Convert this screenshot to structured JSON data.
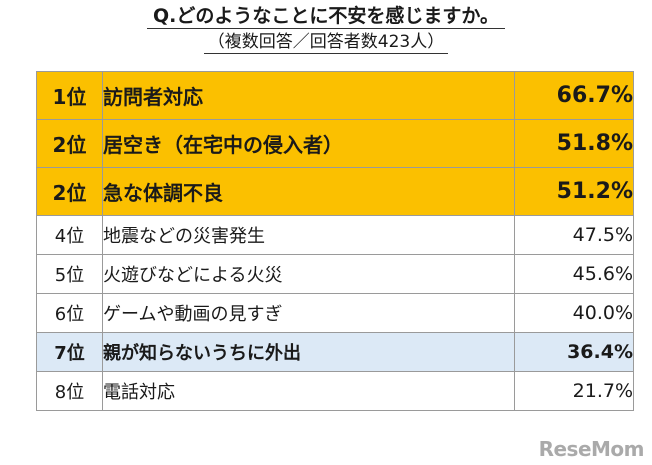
{
  "chart_data": {
    "type": "table",
    "title": "Q.どのようなことに不安を感じますか。",
    "subtitle": "（複数回答／回答者数423人）",
    "rows": [
      {
        "rank": "1位",
        "item": "訪問者対応",
        "value": 66.7,
        "label": "66.7%",
        "style": "top"
      },
      {
        "rank": "2位",
        "item": "居空き（在宅中の侵入者）",
        "value": 51.8,
        "label": "51.8%",
        "style": "top"
      },
      {
        "rank": "2位",
        "item": "急な体調不良",
        "value": 51.2,
        "label": "51.2%",
        "style": "top"
      },
      {
        "rank": "4位",
        "item": "地震などの災害発生",
        "value": 47.5,
        "label": "47.5%",
        "style": "plain"
      },
      {
        "rank": "5位",
        "item": "火遊びなどによる火災",
        "value": 45.6,
        "label": "45.6%",
        "style": "plain"
      },
      {
        "rank": "6位",
        "item": "ゲームや動画の見すぎ",
        "value": 40.0,
        "label": "40.0%",
        "style": "plain"
      },
      {
        "rank": "7位",
        "item": "親が知らないうちに外出",
        "value": 36.4,
        "label": "36.4%",
        "style": "hl"
      },
      {
        "rank": "8位",
        "item": "電話対応",
        "value": 21.7,
        "label": "21.7%",
        "style": "plain"
      }
    ],
    "colors": {
      "top": "#fbc000",
      "highlight": "#dce9f6",
      "border": "#9a9a9a"
    }
  },
  "watermark": "ReseMom"
}
